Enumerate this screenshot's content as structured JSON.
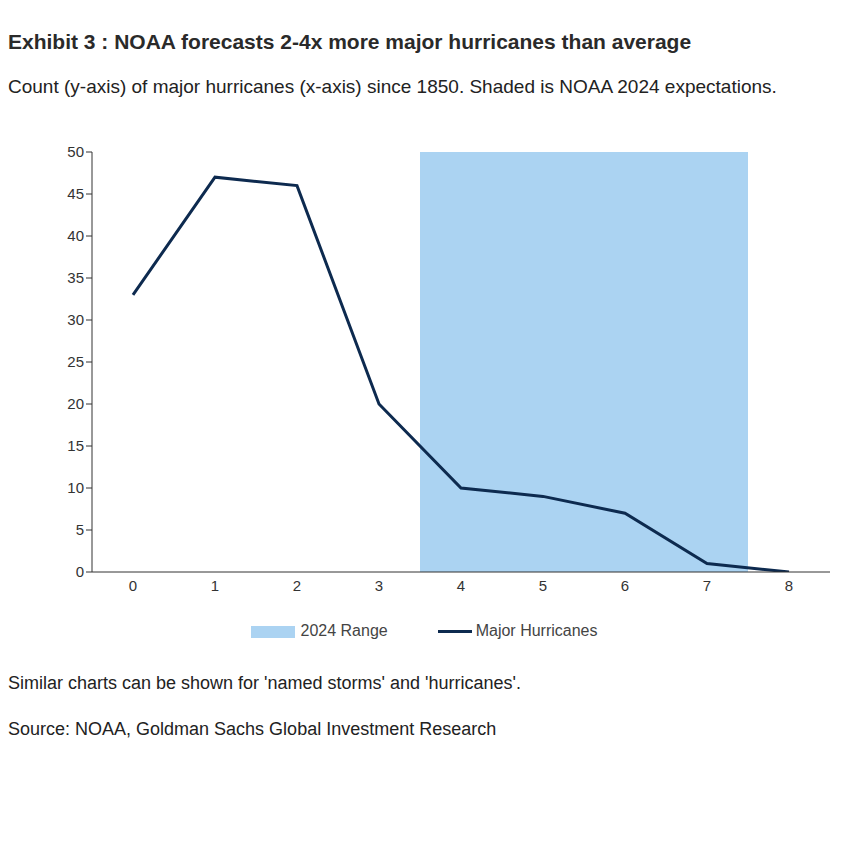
{
  "chart_data": {
    "type": "line",
    "title": "Exhibit 3 : NOAA forecasts 2-4x more major hurricanes than average",
    "subtitle": "Count (y-axis) of major hurricanes (x-axis) since 1850. Shaded is NOAA 2024 expectations.",
    "x": [
      0,
      1,
      2,
      3,
      4,
      5,
      6,
      7,
      8
    ],
    "series": [
      {
        "name": "Major Hurricanes",
        "color": "#0d2a4f",
        "values": [
          33,
          47,
          46,
          20,
          10,
          9,
          7,
          1,
          0
        ]
      }
    ],
    "shaded_range": {
      "label": "2024 Range",
      "x": [
        3.5,
        7.5
      ],
      "color": "#abd3f2"
    },
    "xlim": [
      -0.5,
      8.5
    ],
    "xticks": [
      0,
      1,
      2,
      3,
      4,
      5,
      6,
      7,
      8
    ],
    "ylim": [
      0,
      50
    ],
    "yticks": [
      0,
      5,
      10,
      15,
      20,
      25,
      30,
      35,
      40,
      45,
      50
    ],
    "grid": false,
    "legend": "bottom",
    "notes": [
      "Similar charts can be shown for 'named storms' and 'hurricanes'.",
      "Source: NOAA, Goldman Sachs Global Investment Research"
    ]
  }
}
